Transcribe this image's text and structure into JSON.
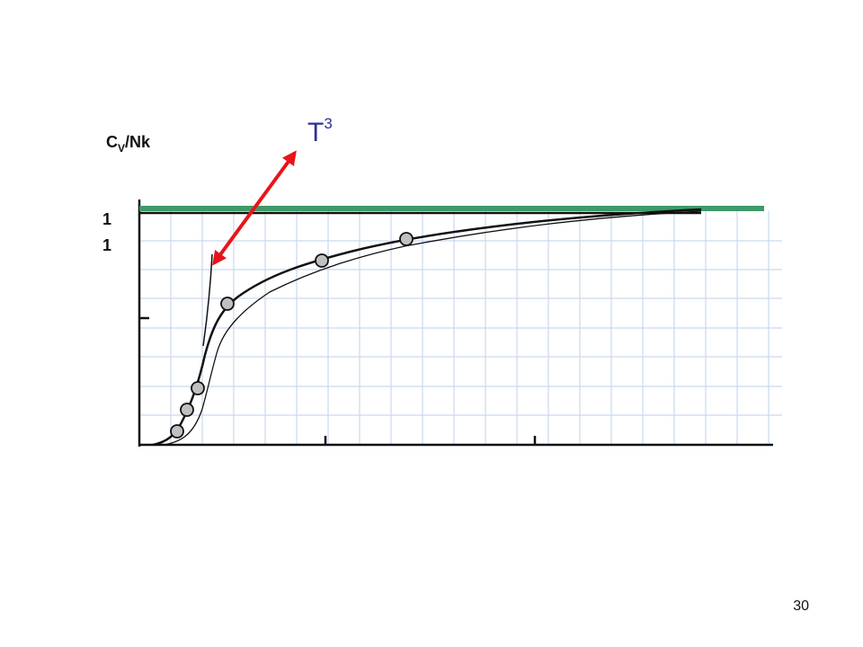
{
  "y_axis_label": {
    "base": "C",
    "subscript": "V",
    "rest": "/Nk"
  },
  "arrow_label": {
    "base": "T",
    "superscript": "3"
  },
  "y_tick_labels": [
    "1",
    "1"
  ],
  "page_number": "30"
}
